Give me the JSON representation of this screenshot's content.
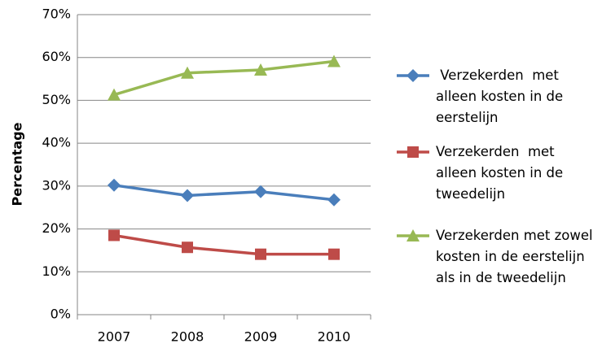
{
  "chart_data": {
    "type": "line",
    "y_label": "Percentage",
    "categories": [
      "2007",
      "2008",
      "2009",
      "2010"
    ],
    "series": [
      {
        "name": " Verzekerden  met alleen kosten in de eerstelijn",
        "color": "#4a7ebb",
        "marker": "diamond",
        "values": [
          30.2,
          27.8,
          28.7,
          26.8
        ]
      },
      {
        "name": "Verzekerden  met alleen kosten in de tweedelijn",
        "color": "#be4b48",
        "marker": "square",
        "values": [
          18.5,
          15.7,
          14.1,
          14.1
        ]
      },
      {
        "name": "Verzekerden met zowel kosten in de eerstelijn als in de tweedelijn",
        "color": "#98b954",
        "marker": "triangle",
        "values": [
          51.3,
          56.4,
          57.1,
          59.1
        ]
      }
    ],
    "ylim": [
      0,
      70
    ],
    "yticks": [
      {
        "value": 0,
        "label": "0%"
      },
      {
        "value": 10,
        "label": "10%"
      },
      {
        "value": 20,
        "label": "20%"
      },
      {
        "value": 30,
        "label": "30%"
      },
      {
        "value": 40,
        "label": "40%"
      },
      {
        "value": 50,
        "label": "50%"
      },
      {
        "value": 60,
        "label": "60%"
      },
      {
        "value": 70,
        "label": "70%"
      }
    ],
    "grid": true,
    "legend": "right"
  }
}
